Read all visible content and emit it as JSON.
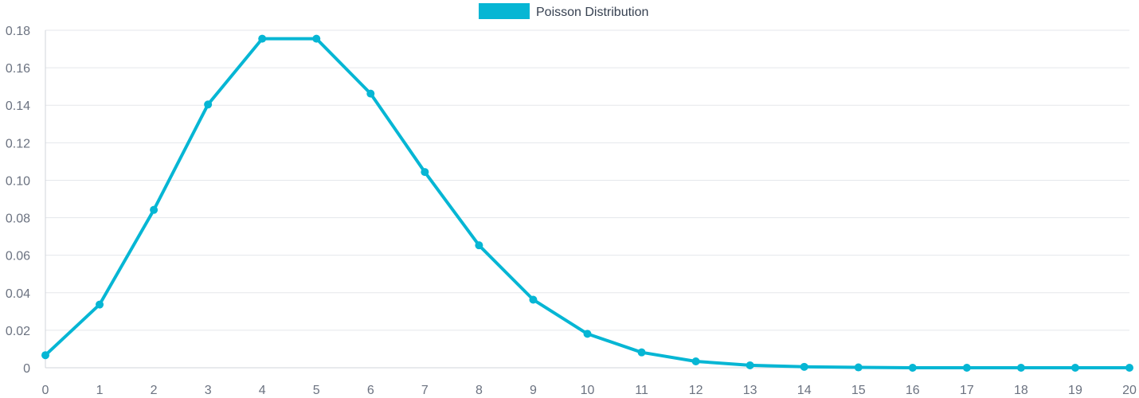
{
  "chart_data": {
    "type": "line",
    "title": "",
    "xlabel": "",
    "ylabel": "",
    "x": [
      0,
      1,
      2,
      3,
      4,
      5,
      6,
      7,
      8,
      9,
      10,
      11,
      12,
      13,
      14,
      15,
      16,
      17,
      18,
      19,
      20
    ],
    "series": [
      {
        "name": "Poisson Distribution",
        "color": "#06b6d4",
        "values": [
          0.0067,
          0.0337,
          0.0842,
          0.1404,
          0.1755,
          0.1755,
          0.1462,
          0.1044,
          0.0653,
          0.0363,
          0.0181,
          0.0082,
          0.0034,
          0.0013,
          0.0005,
          0.0002,
          0.0,
          0.0,
          0.0,
          0.0,
          0.0
        ]
      }
    ],
    "xlim": [
      0,
      20
    ],
    "ylim": [
      0,
      0.18
    ],
    "yticks": [
      0,
      0.02,
      0.04,
      0.06,
      0.08,
      0.1,
      0.12,
      0.14,
      0.16,
      0.18
    ],
    "ytick_labels": [
      "0",
      "0.02",
      "0.04",
      "0.06",
      "0.08",
      "0.10",
      "0.12",
      "0.14",
      "0.16",
      "0.18"
    ],
    "xtick_labels": [
      "0",
      "1",
      "2",
      "3",
      "4",
      "5",
      "6",
      "7",
      "8",
      "9",
      "10",
      "11",
      "12",
      "13",
      "14",
      "15",
      "16",
      "17",
      "18",
      "19",
      "20"
    ],
    "grid": true,
    "legend_position": "top-center"
  }
}
